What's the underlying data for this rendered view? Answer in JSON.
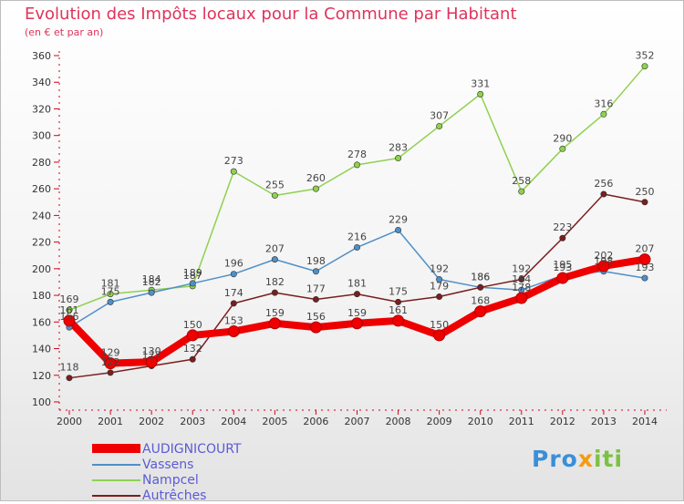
{
  "title": "Evolution des Impôts locaux pour la Commune par Habitant",
  "subtitle": "(en € et par an)",
  "chart_data": {
    "type": "line",
    "x": [
      "2000",
      "2001",
      "2002",
      "2003",
      "2004",
      "2005",
      "2006",
      "2007",
      "2008",
      "2009",
      "2010",
      "2011",
      "2012",
      "2013",
      "2014"
    ],
    "ylim": [
      100,
      360
    ],
    "yticks": [
      100,
      120,
      140,
      160,
      180,
      200,
      220,
      240,
      260,
      280,
      300,
      320,
      340,
      360
    ],
    "grid": false,
    "legend_position": "bottom-left",
    "series": [
      {
        "name": "Nampcel",
        "color": "#8fd14f",
        "values": [
          169,
          181,
          184,
          187,
          273,
          255,
          260,
          278,
          283,
          307,
          331,
          258,
          290,
          316,
          352
        ]
      },
      {
        "name": "Vassens",
        "color": "#4f8fc9",
        "values": [
          156,
          175,
          182,
          189,
          196,
          207,
          198,
          216,
          229,
          192,
          186,
          184,
          195,
          198,
          193
        ]
      },
      {
        "name": "Autrêches",
        "color": "#7a1e1e",
        "values": [
          118,
          122,
          127,
          132,
          174,
          182,
          177,
          181,
          175,
          179,
          186,
          192,
          223,
          256,
          250
        ]
      },
      {
        "name": "AUDIGNICOURT",
        "color": "#ee0000",
        "values": [
          161,
          129,
          130,
          150,
          153,
          159,
          156,
          159,
          161,
          150,
          168,
          178,
          193,
          202,
          207
        ]
      }
    ]
  },
  "legend": {
    "items": [
      {
        "name": "AUDIGNICOURT",
        "color": "#ee0000"
      },
      {
        "name": "Vassens",
        "color": "#4f8fc9"
      },
      {
        "name": "Nampcel",
        "color": "#8fd14f"
      },
      {
        "name": "Autrêches",
        "color": "#7a1e1e"
      }
    ]
  },
  "brand": {
    "p1": "Pro",
    "p2": "x",
    "p3": "iti"
  }
}
